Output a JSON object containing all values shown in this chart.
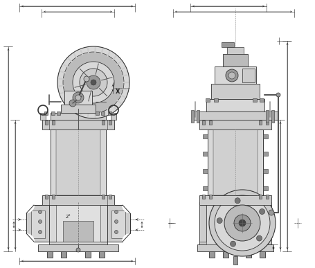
{
  "bg_color": "#ffffff",
  "line_color": "#333333",
  "fill_body": "#cccccc",
  "fill_light": "#d8d8d8",
  "fill_medium": "#bbbbbb",
  "fill_dark": "#999999",
  "dim_color": "#222222",
  "figure_width": 4.56,
  "figure_height": 3.87,
  "dpi": 100,
  "label_x": "X",
  "annotation_2": "2°"
}
